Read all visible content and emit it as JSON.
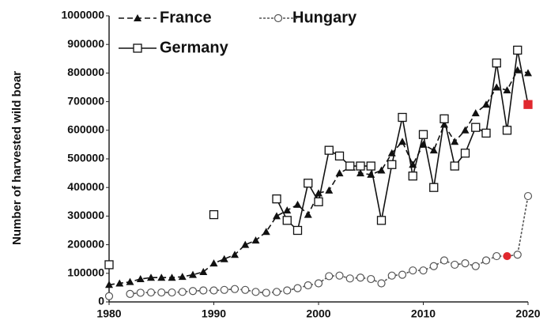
{
  "chart_data": {
    "type": "line",
    "y_label": "Number of harvested wild boar",
    "x": [
      1980,
      1981,
      1982,
      1983,
      1984,
      1985,
      1986,
      1987,
      1988,
      1989,
      1990,
      1991,
      1992,
      1993,
      1994,
      1995,
      1996,
      1997,
      1998,
      1999,
      2000,
      2001,
      2002,
      2003,
      2004,
      2005,
      2006,
      2007,
      2008,
      2009,
      2010,
      2011,
      2012,
      2013,
      2014,
      2015,
      2016,
      2017,
      2018,
      2019,
      2020
    ],
    "series": [
      {
        "name": "France",
        "color": "#111111",
        "marker": "triangle",
        "dash": "7,4",
        "values": [
          60000,
          65000,
          70000,
          80000,
          85000,
          85000,
          85000,
          88000,
          95000,
          105000,
          135000,
          150000,
          165000,
          200000,
          215000,
          245000,
          300000,
          320000,
          340000,
          305000,
          380000,
          390000,
          450000,
          470000,
          450000,
          445000,
          460000,
          520000,
          560000,
          480000,
          550000,
          530000,
          620000,
          560000,
          600000,
          660000,
          690000,
          750000,
          740000,
          810000,
          800000
        ]
      },
      {
        "name": "Hungary",
        "color": "#555555",
        "marker": "circle",
        "dash": "3,2",
        "highlight": [
          38
        ],
        "highlight_color": "#e0282e",
        "values": [
          20000,
          null,
          28000,
          32000,
          33000,
          33000,
          33000,
          35000,
          38000,
          40000,
          40000,
          42000,
          45000,
          42000,
          35000,
          32000,
          35000,
          40000,
          48000,
          58000,
          65000,
          90000,
          92000,
          82000,
          85000,
          80000,
          65000,
          92000,
          95000,
          110000,
          110000,
          125000,
          145000,
          130000,
          135000,
          125000,
          145000,
          160000,
          160000,
          165000,
          370000
        ]
      },
      {
        "name": "Germany",
        "color": "#111111",
        "marker": "square",
        "dash": "none",
        "highlight": [
          40
        ],
        "highlight_color": "#e0282e",
        "values": [
          130000,
          null,
          null,
          null,
          null,
          null,
          null,
          null,
          null,
          null,
          305000,
          null,
          null,
          null,
          null,
          null,
          360000,
          285000,
          250000,
          415000,
          350000,
          530000,
          510000,
          475000,
          475000,
          475000,
          285000,
          480000,
          645000,
          440000,
          585000,
          400000,
          640000,
          475000,
          520000,
          610000,
          590000,
          835000,
          600000,
          880000,
          690000
        ]
      }
    ],
    "xlim": [
      1980,
      2020
    ],
    "xticks": [
      1980,
      1990,
      2000,
      2010,
      2020
    ],
    "ylim": [
      0,
      1000000
    ],
    "yticks": [
      0,
      100000,
      200000,
      300000,
      400000,
      500000,
      600000,
      700000,
      800000,
      900000,
      1000000
    ]
  }
}
